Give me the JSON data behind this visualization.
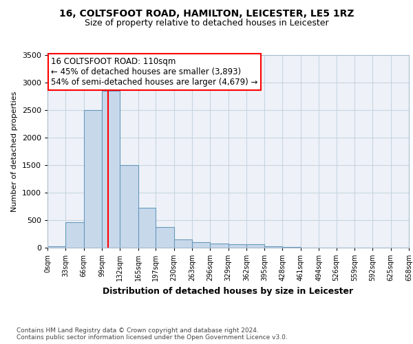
{
  "title_line1": "16, COLTSFOOT ROAD, HAMILTON, LEICESTER, LE5 1RZ",
  "title_line2": "Size of property relative to detached houses in Leicester",
  "xlabel": "Distribution of detached houses by size in Leicester",
  "ylabel": "Number of detached properties",
  "bin_edges": [
    0,
    33,
    66,
    99,
    132,
    165,
    197,
    230,
    263,
    296,
    329,
    362,
    395,
    428,
    461,
    494,
    526,
    559,
    592,
    625,
    658
  ],
  "bar_heights": [
    30,
    460,
    2500,
    2850,
    1500,
    720,
    380,
    150,
    100,
    70,
    60,
    60,
    30,
    10,
    5,
    5,
    2,
    2,
    2,
    2
  ],
  "bar_color": "#c8d8eb",
  "bar_edgecolor": "#6699bb",
  "property_size": 110,
  "property_line_color": "red",
  "annotation_text": "16 COLTSFOOT ROAD: 110sqm\n← 45% of detached houses are smaller (3,893)\n54% of semi-detached houses are larger (4,679) →",
  "annotation_box_edgecolor": "red",
  "annotation_box_facecolor": "white",
  "ylim": [
    0,
    3500
  ],
  "yticks": [
    0,
    500,
    1000,
    1500,
    2000,
    2500,
    3000,
    3500
  ],
  "tick_labels": [
    "0sqm",
    "33sqm",
    "66sqm",
    "99sqm",
    "132sqm",
    "165sqm",
    "197sqm",
    "230sqm",
    "263sqm",
    "296sqm",
    "329sqm",
    "362sqm",
    "395sqm",
    "428sqm",
    "461sqm",
    "494sqm",
    "526sqm",
    "559sqm",
    "592sqm",
    "625sqm",
    "658sqm"
  ],
  "footer_text": "Contains HM Land Registry data © Crown copyright and database right 2024.\nContains public sector information licensed under the Open Government Licence v3.0.",
  "background_color": "#ffffff",
  "grid_color": "#c8d4e0",
  "plot_bg_color": "#eef2f8"
}
